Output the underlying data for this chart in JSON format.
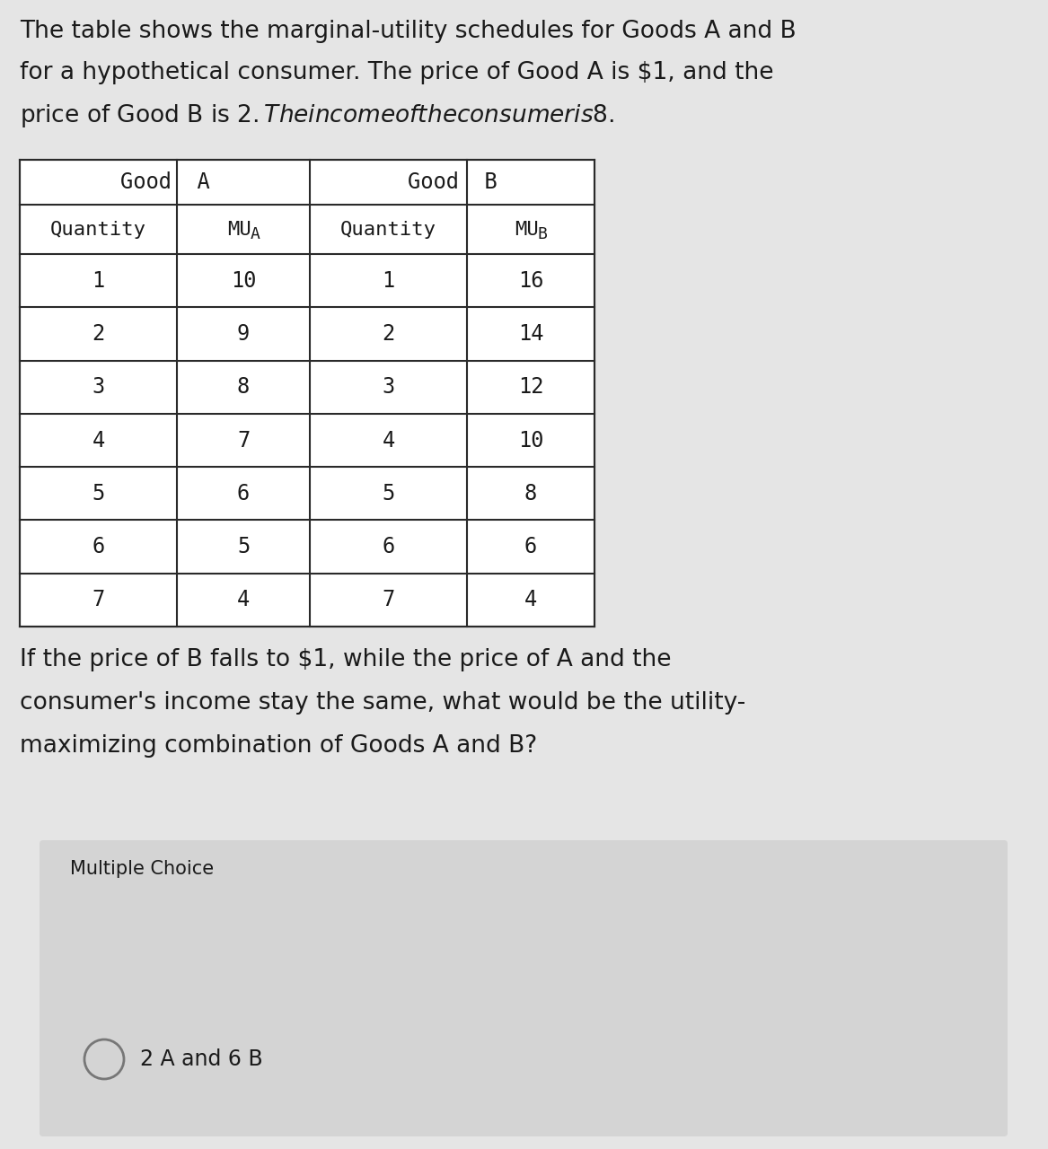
{
  "intro_line1": "The table shows the marginal-utility schedules for Goods A and B",
  "intro_line2": "for a hypothetical consumer. The price of Good A is $1, and the",
  "intro_line3": "price of Good B is $2. The income of the consumer is $8.",
  "table_data": [
    [
      "1",
      "10",
      "1",
      "16"
    ],
    [
      "2",
      "9",
      "2",
      "14"
    ],
    [
      "3",
      "8",
      "3",
      "12"
    ],
    [
      "4",
      "7",
      "4",
      "10"
    ],
    [
      "5",
      "6",
      "5",
      "8"
    ],
    [
      "6",
      "5",
      "6",
      "6"
    ],
    [
      "7",
      "4",
      "7",
      "4"
    ]
  ],
  "q_line1": "If the price of B falls to $1, while the price of A and the",
  "q_line2": "consumer's income stay the same, what would be the utility-",
  "q_line3": "maximizing combination of Goods A and B?",
  "multiple_choice_label": "Multiple Choice",
  "answer_text": "2 A and 6 B",
  "bg_color": "#e5e5e5",
  "white_bg": "#ffffff",
  "mc_box_color": "#d4d4d4",
  "table_border_color": "#2a2a2a",
  "text_color": "#1a1a1a",
  "font_size_intro": 19,
  "font_size_table_header1": 17,
  "font_size_table_header2": 16,
  "font_size_table_data": 17,
  "font_size_question": 19,
  "font_size_mc_label": 15,
  "font_size_answer": 17
}
